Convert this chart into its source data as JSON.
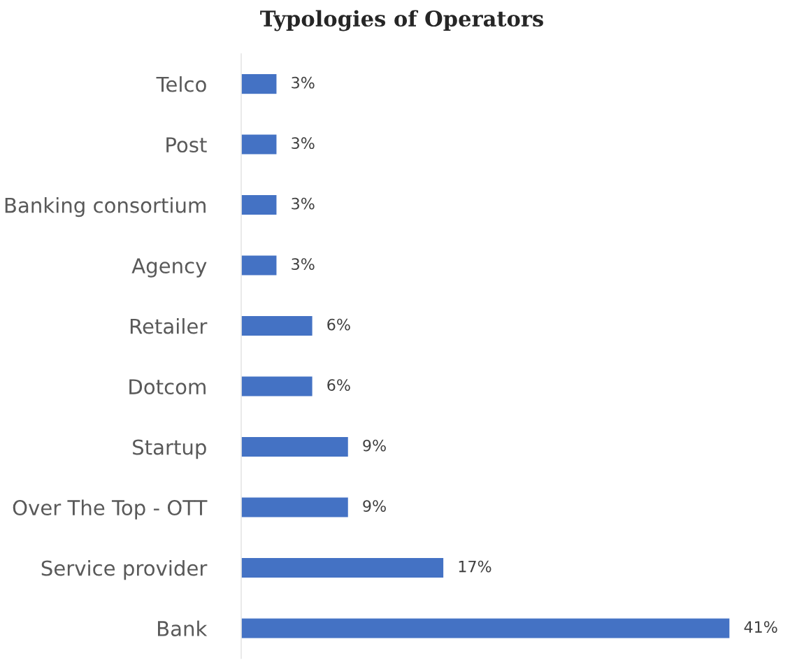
{
  "chart_data": {
    "type": "bar",
    "orientation": "horizontal",
    "title": "Typologies of Operators",
    "categories": [
      "Telco",
      "Post",
      "Banking consortium",
      "Agency",
      "Retailer",
      "Dotcom",
      "Startup",
      "Over The Top - OTT",
      "Service provider",
      "Bank"
    ],
    "values": [
      3,
      3,
      3,
      3,
      6,
      6,
      9,
      9,
      17,
      41
    ],
    "value_labels": [
      "3%",
      "3%",
      "3%",
      "3%",
      "6%",
      "6%",
      "9%",
      "9%",
      "17%",
      "41%"
    ],
    "color": "#4472c4",
    "grid": false,
    "legend": false
  }
}
